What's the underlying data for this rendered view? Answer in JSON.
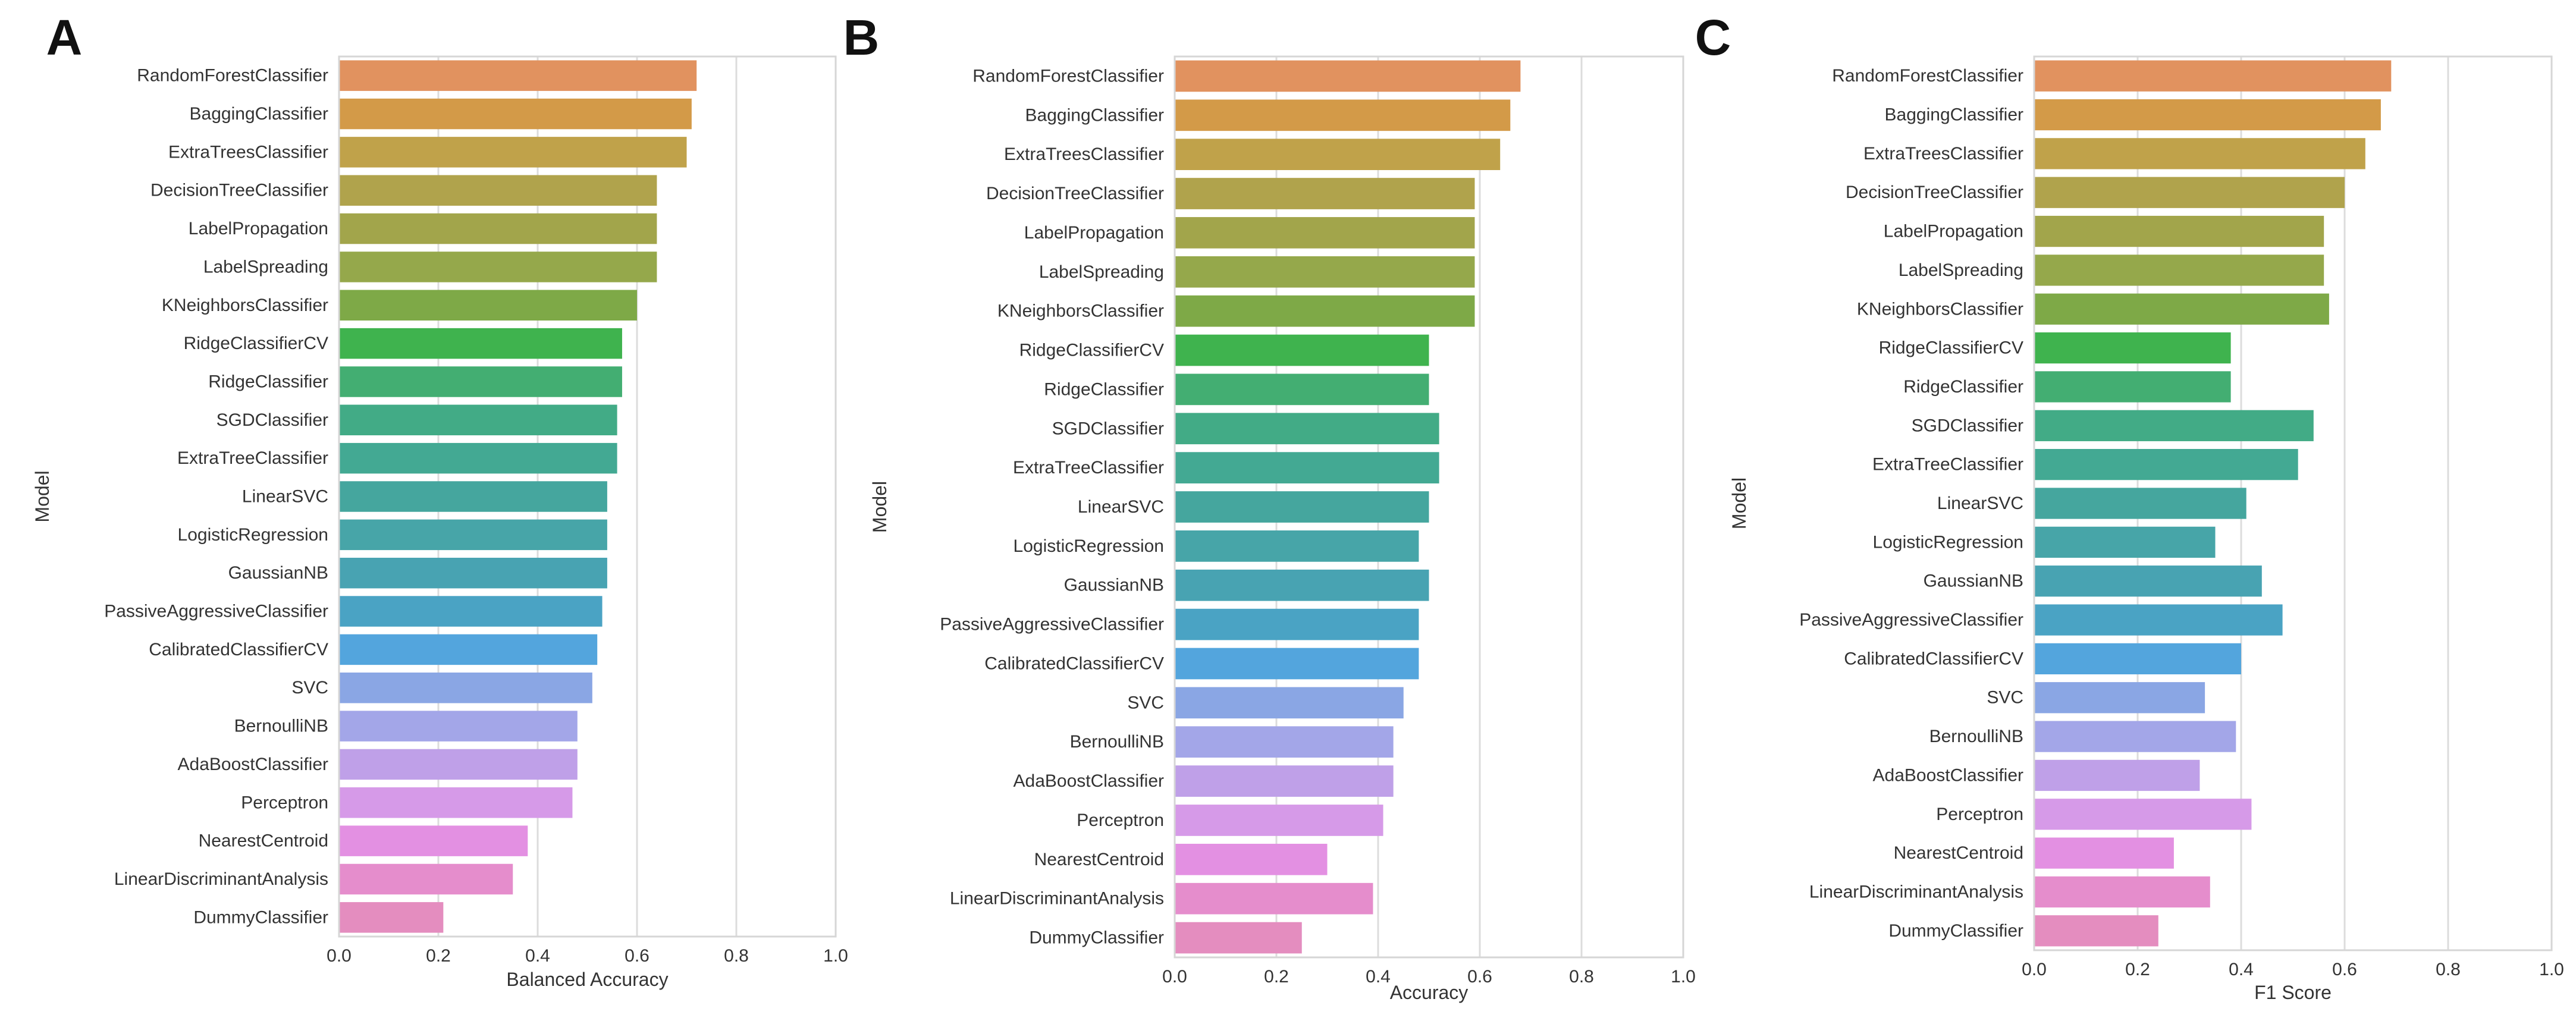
{
  "palette": [
    "#e1925f",
    "#d39a48",
    "#c0a24a",
    "#b0a34c",
    "#a2a54b",
    "#95a84b",
    "#7ea947",
    "#3fb34e",
    "#43ae72",
    "#42ab86",
    "#43a993",
    "#45a69e",
    "#47a5a8",
    "#48a3b2",
    "#4aa3c4",
    "#53a5dd",
    "#8aa6e4",
    "#a3a6e8",
    "#bfa0e8",
    "#d69ae8",
    "#e390e2",
    "#e58dcc",
    "#e48dbf"
  ],
  "chart_data": [
    {
      "type": "bar",
      "orientation": "horizontal",
      "panel": "A",
      "title": "",
      "xlabel": "Balanced Accuracy",
      "ylabel": "Model",
      "xlim": [
        0,
        1.0
      ],
      "xticks": [
        "0.0",
        "0.2",
        "0.4",
        "0.6",
        "0.8",
        "1.0"
      ],
      "grid": true,
      "categories": [
        "RandomForestClassifier",
        "BaggingClassifier",
        "ExtraTreesClassifier",
        "DecisionTreeClassifier",
        "LabelPropagation",
        "LabelSpreading",
        "KNeighborsClassifier",
        "RidgeClassifierCV",
        "RidgeClassifier",
        "SGDClassifier",
        "ExtraTreeClassifier",
        "LinearSVC",
        "LogisticRegression",
        "GaussianNB",
        "PassiveAggressiveClassifier",
        "CalibratedClassifierCV",
        "SVC",
        "BernoulliNB",
        "AdaBoostClassifier",
        "Perceptron",
        "NearestCentroid",
        "LinearDiscriminantAnalysis",
        "DummyClassifier"
      ],
      "values": [
        0.72,
        0.71,
        0.7,
        0.64,
        0.64,
        0.64,
        0.6,
        0.57,
        0.57,
        0.56,
        0.56,
        0.54,
        0.54,
        0.54,
        0.53,
        0.52,
        0.51,
        0.48,
        0.48,
        0.47,
        0.38,
        0.35,
        0.21
      ]
    },
    {
      "type": "bar",
      "orientation": "horizontal",
      "panel": "B",
      "title": "",
      "xlabel": "Accuracy",
      "ylabel": "Model",
      "xlim": [
        0,
        1.0
      ],
      "xticks": [
        "0.0",
        "0.2",
        "0.4",
        "0.6",
        "0.8",
        "1.0"
      ],
      "grid": true,
      "categories": [
        "RandomForestClassifier",
        "BaggingClassifier",
        "ExtraTreesClassifier",
        "DecisionTreeClassifier",
        "LabelPropagation",
        "LabelSpreading",
        "KNeighborsClassifier",
        "RidgeClassifierCV",
        "RidgeClassifier",
        "SGDClassifier",
        "ExtraTreeClassifier",
        "LinearSVC",
        "LogisticRegression",
        "GaussianNB",
        "PassiveAggressiveClassifier",
        "CalibratedClassifierCV",
        "SVC",
        "BernoulliNB",
        "AdaBoostClassifier",
        "Perceptron",
        "NearestCentroid",
        "LinearDiscriminantAnalysis",
        "DummyClassifier"
      ],
      "values": [
        0.68,
        0.66,
        0.64,
        0.59,
        0.59,
        0.59,
        0.59,
        0.5,
        0.5,
        0.52,
        0.52,
        0.5,
        0.48,
        0.5,
        0.48,
        0.48,
        0.45,
        0.43,
        0.43,
        0.41,
        0.3,
        0.39,
        0.25
      ]
    },
    {
      "type": "bar",
      "orientation": "horizontal",
      "panel": "C",
      "title": "",
      "xlabel": "F1 Score",
      "ylabel": "Model",
      "xlim": [
        0,
        1.0
      ],
      "xticks": [
        "0.0",
        "0.2",
        "0.4",
        "0.6",
        "0.8",
        "1.0"
      ],
      "grid": true,
      "categories": [
        "RandomForestClassifier",
        "BaggingClassifier",
        "ExtraTreesClassifier",
        "DecisionTreeClassifier",
        "LabelPropagation",
        "LabelSpreading",
        "KNeighborsClassifier",
        "RidgeClassifierCV",
        "RidgeClassifier",
        "SGDClassifier",
        "ExtraTreeClassifier",
        "LinearSVC",
        "LogisticRegression",
        "GaussianNB",
        "PassiveAggressiveClassifier",
        "CalibratedClassifierCV",
        "SVC",
        "BernoulliNB",
        "AdaBoostClassifier",
        "Perceptron",
        "NearestCentroid",
        "LinearDiscriminantAnalysis",
        "DummyClassifier"
      ],
      "values": [
        0.69,
        0.67,
        0.64,
        0.6,
        0.56,
        0.56,
        0.57,
        0.38,
        0.38,
        0.54,
        0.51,
        0.41,
        0.35,
        0.44,
        0.48,
        0.4,
        0.33,
        0.39,
        0.32,
        0.42,
        0.27,
        0.34,
        0.24
      ]
    }
  ]
}
